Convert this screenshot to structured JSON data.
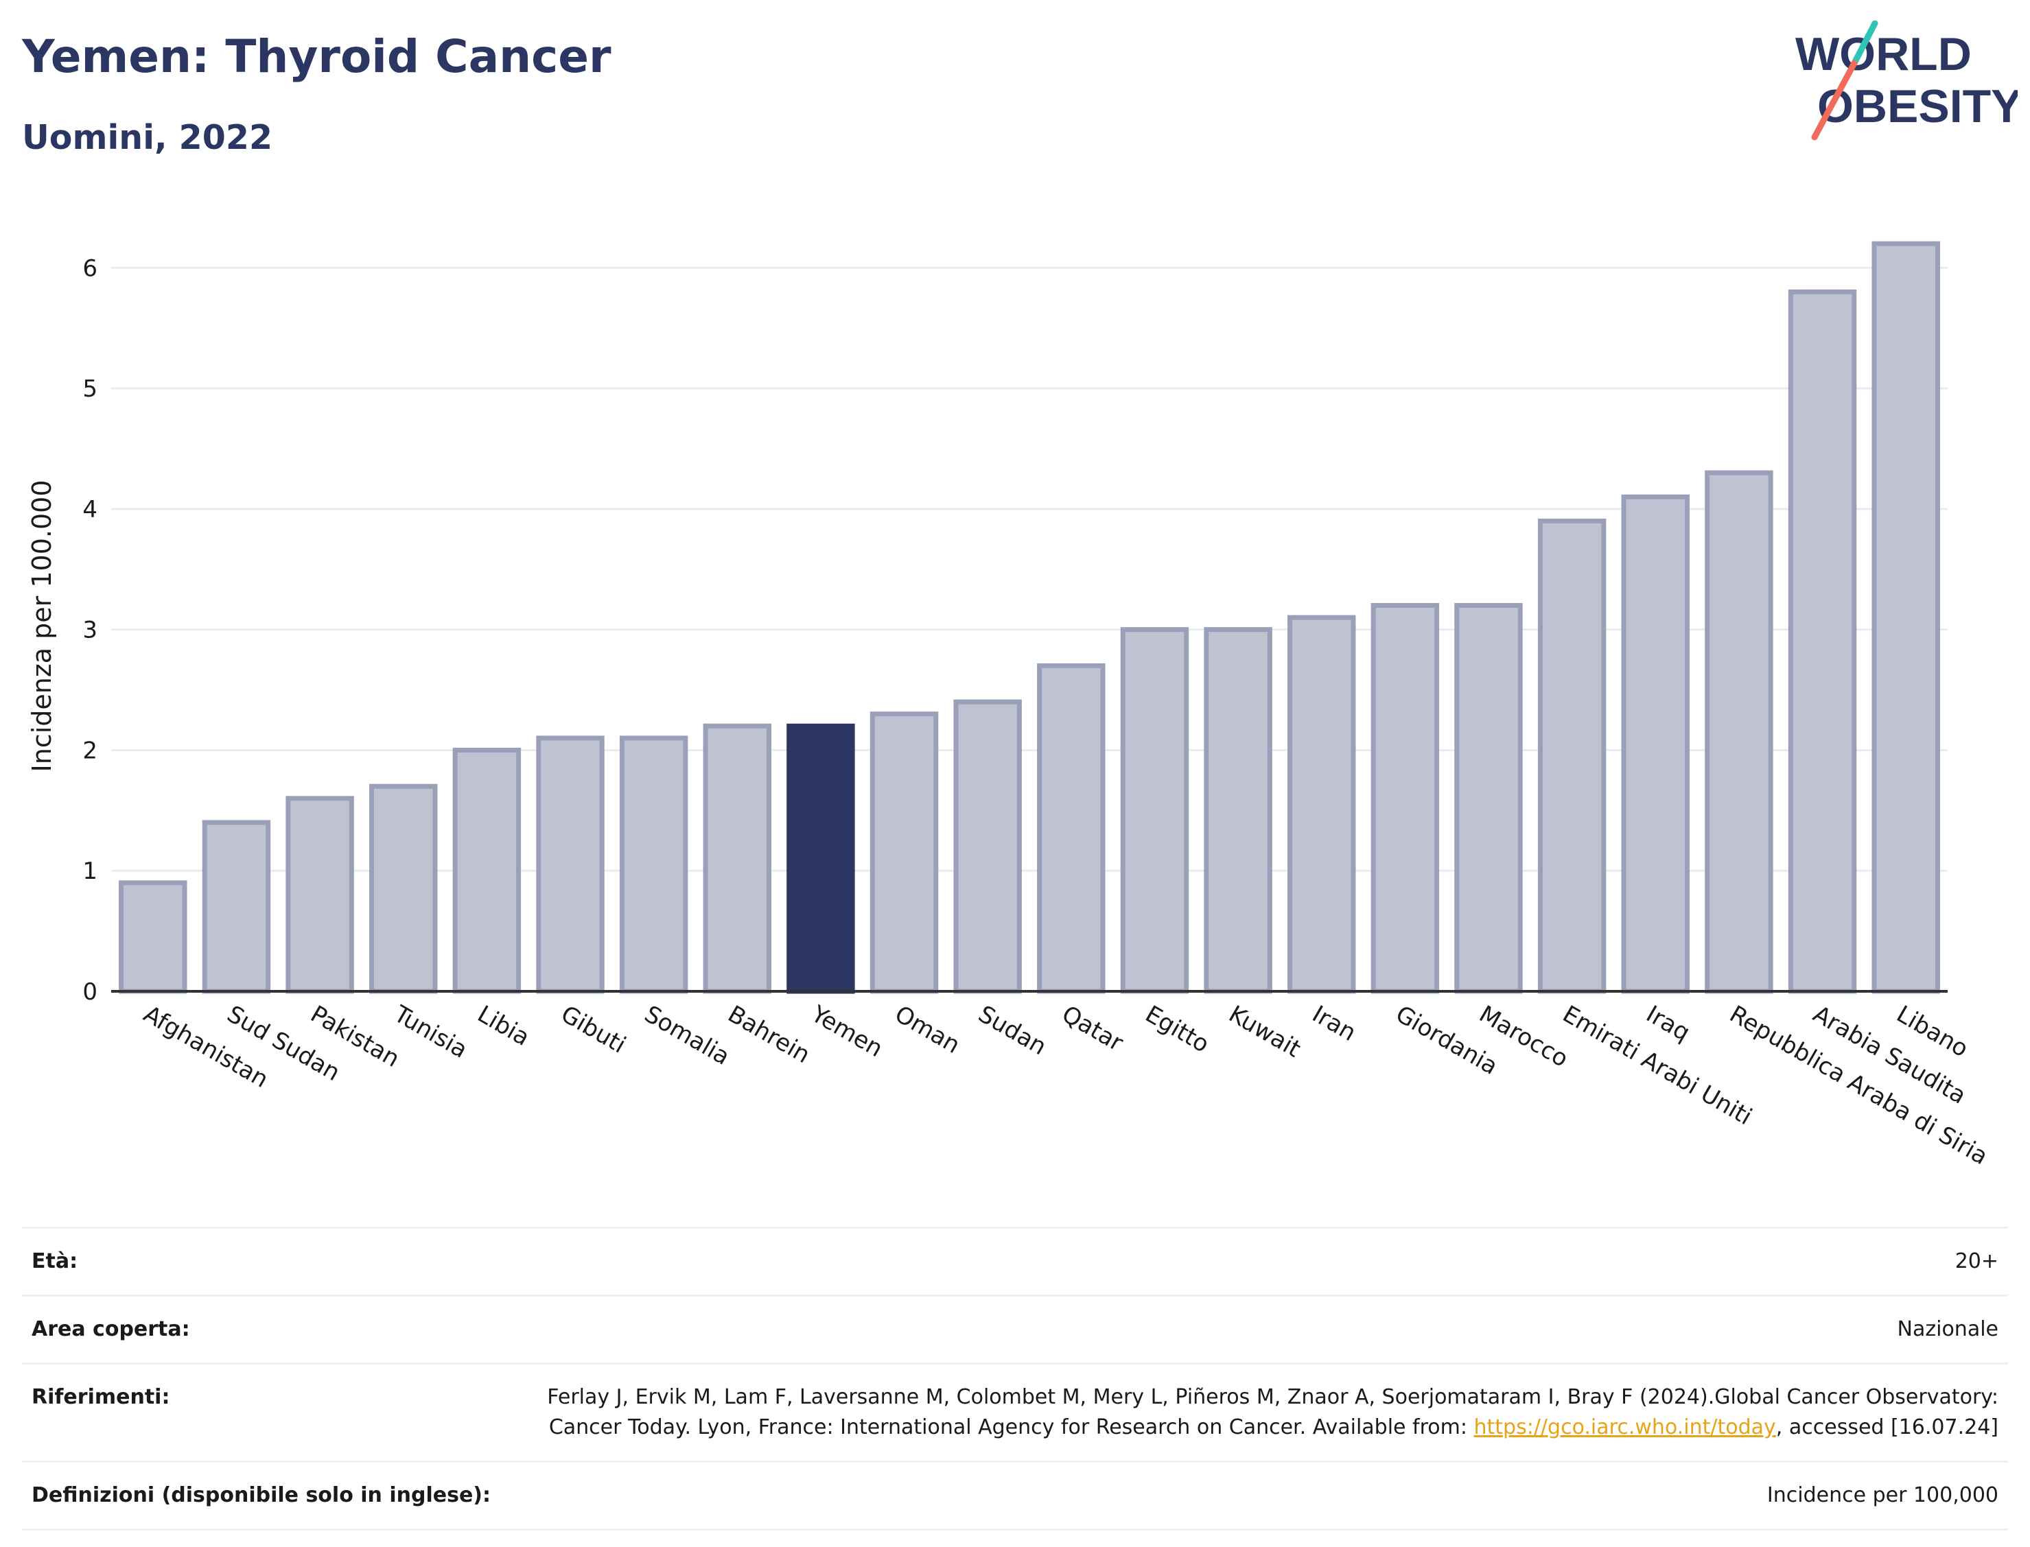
{
  "header": {
    "title": "Yemen: Thyroid Cancer",
    "subtitle": "Uomini, 2022"
  },
  "logo": {
    "line1": "WORLD",
    "line2": "OBESITY",
    "accent_colors": [
      "#2ec4b6",
      "#f26b5b"
    ]
  },
  "colors": {
    "highlight_bar": "#2b3662",
    "default_bar_fill": "#bfc3d1",
    "default_bar_stroke": "#9aa0b8",
    "title": "#2b3662",
    "link": "#e8a317"
  },
  "chart_data": {
    "type": "bar",
    "title": "Yemen: Thyroid Cancer",
    "subtitle": "Uomini, 2022",
    "xlabel": "",
    "ylabel": "Incidenza per 100.000",
    "ylim": [
      0,
      6.4
    ],
    "yticks": [
      0,
      1,
      2,
      3,
      4,
      5,
      6
    ],
    "grid": true,
    "highlight": "Yemen",
    "categories": [
      "Afghanistan",
      "Sud Sudan",
      "Pakistan",
      "Tunisia",
      "Libia",
      "Gibuti",
      "Somalia",
      "Bahrein",
      "Yemen",
      "Oman",
      "Sudan",
      "Qatar",
      "Egitto",
      "Kuwait",
      "Iran",
      "Giordania",
      "Marocco",
      "Emirati Arabi Uniti",
      "Iraq",
      "Repubblica Araba di Siria",
      "Arabia Saudita",
      "Libano"
    ],
    "values": [
      0.9,
      1.4,
      1.6,
      1.7,
      2.0,
      2.1,
      2.1,
      2.2,
      2.2,
      2.3,
      2.4,
      2.7,
      3.0,
      3.0,
      3.1,
      3.2,
      3.2,
      3.9,
      4.1,
      4.3,
      5.8,
      6.2
    ]
  },
  "info": {
    "age_label": "Età:",
    "age_value": "20+",
    "area_label": "Area coperta:",
    "area_value": "Nazionale",
    "refs_label": "Riferimenti:",
    "refs_text_1": "Ferlay J, Ervik M, Lam F, Laversanne M, Colombet M, Mery L, Piñeros M, Znaor A, Soerjomataram I, Bray F (2024).Global Cancer Observatory: Cancer Today. Lyon, France: International Agency for Research on Cancer. Available from: ",
    "refs_link": "https://gco.iarc.who.int/today",
    "refs_text_2": ", accessed [16.07.24]",
    "defs_label": "Definizioni (disponibile solo in inglese):",
    "defs_value": "Incidence per 100,000"
  }
}
